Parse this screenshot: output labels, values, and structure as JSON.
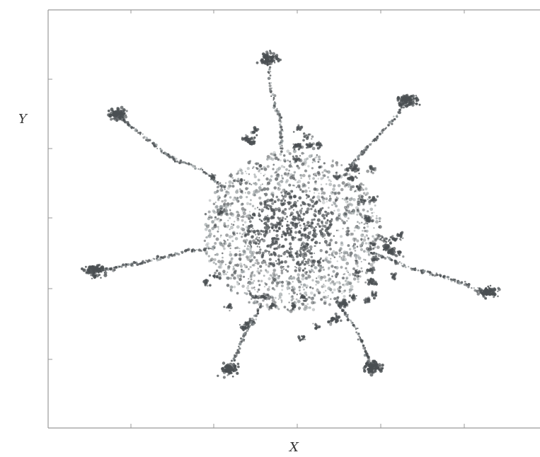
{
  "chart_data": {
    "type": "scatter",
    "title": "",
    "xlabel": "X",
    "ylabel": "Y",
    "grid": false,
    "legend": "none",
    "x_ticks": 5,
    "y_ticks": 5,
    "description_free_colors": {
      "cluster": "#4a4f52",
      "cluster_light": "#8a9294",
      "frame": "#9a9a9a"
    },
    "aggregate": {
      "arms": 8,
      "arm_angles_deg": [
        95,
        52,
        5,
        -25,
        -55,
        -110,
        -150,
        200
      ],
      "core_center": [
        0.5,
        0.5
      ]
    }
  }
}
